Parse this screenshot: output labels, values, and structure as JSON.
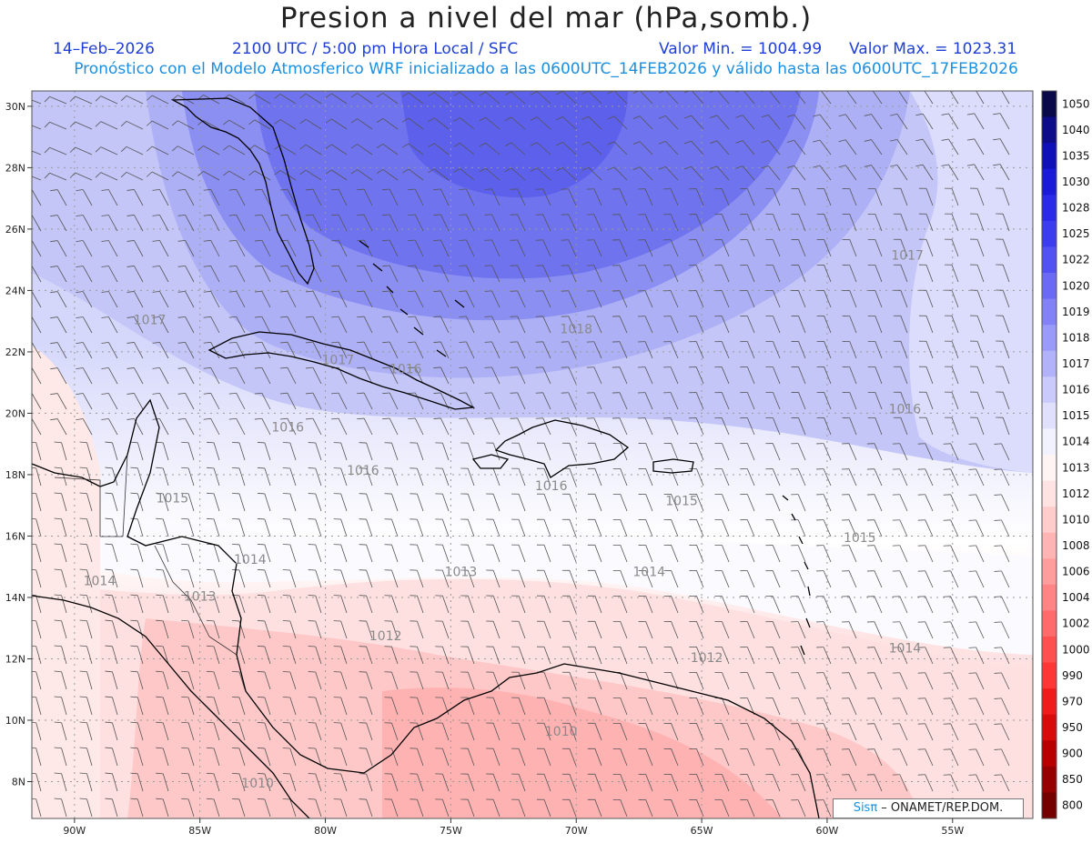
{
  "title": "Presion a nivel del mar (hPa,somb.)",
  "date": "14–Feb–2026",
  "time": "2100 UTC / 5:00 pm Hora Local / SFC",
  "min_value": "Valor Min. = 1004.99",
  "max_value": "Valor Max. = 1023.31",
  "forecast_note": "Pronóstico con el Modelo Atmosferico WRF inicializado a las 0600UTC_14FEB2026 y válido hasta las  0600UTC_17FEB2026",
  "lon_labels": [
    "90W",
    "85W",
    "80W",
    "75W",
    "70W",
    "65W",
    "60W",
    "55W"
  ],
  "lat_labels": [
    "30N",
    "28N",
    "26N",
    "24N",
    "22N",
    "20N",
    "18N",
    "16N",
    "14N",
    "12N",
    "10N",
    "8N"
  ],
  "colorbar": {
    "labels": [
      "1050",
      "1040",
      "1035",
      "1030",
      "1028",
      "1025",
      "1022",
      "1020",
      "1019",
      "1018",
      "1017",
      "1016",
      "1015",
      "1014",
      "1013",
      "1012",
      "1010",
      "1008",
      "1006",
      "1004",
      "1002",
      "1000",
      "990",
      "970",
      "950",
      "900",
      "850",
      "800"
    ],
    "colors": [
      "#0a0a4a",
      "#0d0d8a",
      "#1010b8",
      "#1a1ad8",
      "#2a2ae8",
      "#3d3df0",
      "#5252f2",
      "#6a6af4",
      "#8282f6",
      "#9a9af8",
      "#b2b2fa",
      "#cacafc",
      "#e0e0fd",
      "#f2f2fe",
      "#fff4f4",
      "#ffe2e2",
      "#ffcccc",
      "#ffb4b4",
      "#ff9c9c",
      "#ff8484",
      "#ff6a6a",
      "#ff5050",
      "#ff3636",
      "#f01c1c",
      "#d80a0a",
      "#b80000",
      "#960000",
      "#740000"
    ]
  },
  "isobar_labels": [
    {
      "text": "1017",
      "lon": -87.0,
      "lat": 22.9
    },
    {
      "text": "1017",
      "lon": -79.5,
      "lat": 21.6
    },
    {
      "text": "1016",
      "lon": -76.8,
      "lat": 21.3
    },
    {
      "text": "1016",
      "lon": -81.5,
      "lat": 19.4
    },
    {
      "text": "1016",
      "lon": -78.5,
      "lat": 18.0
    },
    {
      "text": "1015",
      "lon": -86.1,
      "lat": 17.1
    },
    {
      "text": "1014",
      "lon": -83.0,
      "lat": 15.1
    },
    {
      "text": "1014",
      "lon": -89.0,
      "lat": 14.4
    },
    {
      "text": "1013",
      "lon": -85.0,
      "lat": 13.9
    },
    {
      "text": "1013",
      "lon": -74.6,
      "lat": 14.7
    },
    {
      "text": "1014",
      "lon": -67.1,
      "lat": 14.7
    },
    {
      "text": "1012",
      "lon": -77.6,
      "lat": 12.6
    },
    {
      "text": "1012",
      "lon": -64.8,
      "lat": 11.9
    },
    {
      "text": "1014",
      "lon": -56.9,
      "lat": 12.2
    },
    {
      "text": "1010",
      "lon": -70.6,
      "lat": 9.5
    },
    {
      "text": "1010",
      "lon": -82.7,
      "lat": 7.8
    },
    {
      "text": "1016",
      "lon": -71.0,
      "lat": 17.5
    },
    {
      "text": "1015",
      "lon": -65.8,
      "lat": 17.0
    },
    {
      "text": "1016",
      "lon": -56.9,
      "lat": 20.0
    },
    {
      "text": "1015",
      "lon": -58.7,
      "lat": 15.8
    },
    {
      "text": "1017",
      "lon": -56.8,
      "lat": 25.0
    },
    {
      "text": "1018",
      "lon": -70.0,
      "lat": 22.6
    }
  ],
  "credit": {
    "brand": "Sisπ",
    "text": " – ONAMET/REP.DOM."
  }
}
